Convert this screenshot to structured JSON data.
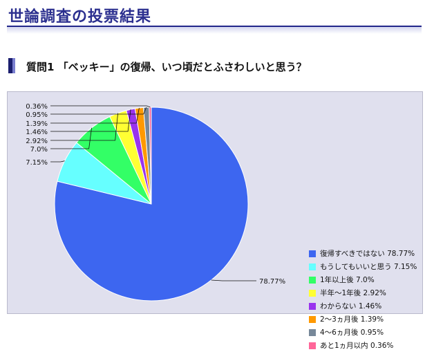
{
  "header": {
    "title": "世論調査の投票結果"
  },
  "question": {
    "text": "質問1 「ベッキー」の復帰、いつ頃だとふさわしいと思う？"
  },
  "chart_data": {
    "type": "pie",
    "slices": [
      {
        "label": "復帰すべきではない",
        "value": 78.77,
        "value_label": "78.77%",
        "legend": "復帰すべきではない 78.77%",
        "color": "#3d66f0"
      },
      {
        "label": "もうしてもいいと思う",
        "value": 7.15,
        "value_label": "7.15%",
        "legend": "もうしてもいいと思う 7.15%",
        "color": "#66ffff"
      },
      {
        "label": "1年以上後",
        "value": 7.0,
        "value_label": "7.0%",
        "legend": "1年以上後 7.0%",
        "color": "#33ff66"
      },
      {
        "label": "半年～1年後",
        "value": 2.92,
        "value_label": "2.92%",
        "legend": "半年～1年後 2.92%",
        "color": "#ffff33"
      },
      {
        "label": "わからない",
        "value": 1.46,
        "value_label": "1.46%",
        "legend": "わからない 1.46%",
        "color": "#9933ee"
      },
      {
        "label": "2～3ヵ月後",
        "value": 1.39,
        "value_label": "1.39%",
        "legend": "2～3ヵ月後 1.39%",
        "color": "#ff9900"
      },
      {
        "label": "4～6ヵ月後",
        "value": 0.95,
        "value_label": "0.95%",
        "legend": "4～6ヵ月後 0.95%",
        "color": "#778899"
      },
      {
        "label": "あと1ヵ月以内",
        "value": 0.36,
        "value_label": "0.36%",
        "legend": "あと1ヵ月以内 0.36%",
        "color": "#ff6699"
      }
    ],
    "legend_position": "right"
  }
}
